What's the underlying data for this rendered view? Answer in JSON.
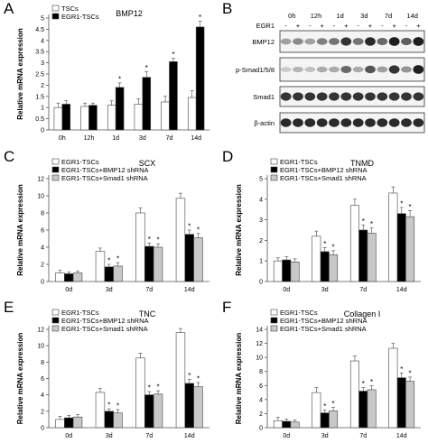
{
  "panels": {
    "A": "A",
    "B": "B",
    "C": "C",
    "D": "D",
    "E": "E",
    "F": "F"
  },
  "colors": {
    "open": "#ffffff",
    "dark": "#000000",
    "gray": "#c8c8c8",
    "axis": "#555555"
  },
  "chart_data": [
    {
      "panel": "A",
      "type": "bar",
      "title": "BMP12",
      "ylabel": "Relative mRNA expression",
      "xlabel": "",
      "categories": [
        "0h",
        "12h",
        "1d",
        "3d",
        "7d",
        "14d"
      ],
      "ylim": [
        0,
        5
      ],
      "yticks": [
        0,
        0.5,
        1,
        1.5,
        2,
        2.5,
        3,
        3.5,
        4,
        4.5,
        5
      ],
      "legend_position": "top-left",
      "series": [
        {
          "name": "TSCs",
          "fill": "open",
          "values": [
            1.0,
            1.05,
            1.1,
            1.15,
            1.25,
            1.45
          ],
          "errors": [
            0.2,
            0.15,
            0.2,
            0.25,
            0.25,
            0.3
          ]
        },
        {
          "name": "EGR1-TSCs",
          "fill": "dark",
          "values": [
            1.15,
            1.1,
            1.9,
            2.35,
            3.05,
            4.6
          ],
          "errors": [
            0.15,
            0.1,
            0.2,
            0.25,
            0.15,
            0.25
          ]
        }
      ],
      "significance": [
        {
          "category": "1d",
          "series": 1,
          "label": "*"
        },
        {
          "category": "3d",
          "series": 1,
          "label": "*"
        },
        {
          "category": "7d",
          "series": 1,
          "label": "*"
        },
        {
          "category": "14d",
          "series": 1,
          "label": "*"
        }
      ]
    },
    {
      "panel": "C",
      "type": "bar",
      "title": "SCX",
      "ylabel": "Relative mRNA expression",
      "xlabel": "",
      "categories": [
        "0d",
        "3d",
        "7d",
        "14d"
      ],
      "ylim": [
        0,
        12
      ],
      "yticks": [
        0,
        2,
        4,
        6,
        8,
        10,
        12
      ],
      "legend_position": "top-left",
      "series": [
        {
          "name": "EGR1-TSCs",
          "fill": "open",
          "values": [
            1.0,
            3.5,
            8.0,
            9.7
          ],
          "errors": [
            0.3,
            0.4,
            0.6,
            0.6
          ]
        },
        {
          "name": "EGR1-TSCs+BMP12 shRNA",
          "fill": "dark",
          "values": [
            0.9,
            1.7,
            4.1,
            5.5
          ],
          "errors": [
            0.2,
            0.3,
            0.4,
            0.5
          ]
        },
        {
          "name": "EGR1-TSCs+Smad1 shRNA",
          "fill": "gray",
          "values": [
            1.0,
            1.8,
            4.0,
            5.1
          ],
          "errors": [
            0.2,
            0.4,
            0.4,
            0.5
          ]
        }
      ],
      "significance": [
        {
          "category": "3d",
          "series": 1,
          "label": "*"
        },
        {
          "category": "3d",
          "series": 2,
          "label": "*"
        },
        {
          "category": "7d",
          "series": 1,
          "label": "*"
        },
        {
          "category": "7d",
          "series": 2,
          "label": "*"
        },
        {
          "category": "14d",
          "series": 1,
          "label": "*"
        },
        {
          "category": "14d",
          "series": 2,
          "label": "*"
        }
      ]
    },
    {
      "panel": "D",
      "type": "bar",
      "title": "TNMD",
      "ylabel": "Relative mRNA expression",
      "xlabel": "",
      "categories": [
        "0d",
        "3d",
        "7d",
        "14d"
      ],
      "ylim": [
        0,
        5
      ],
      "yticks": [
        0,
        1,
        2,
        3,
        4,
        5
      ],
      "legend_position": "top-left",
      "series": [
        {
          "name": "EGR1-TSCs",
          "fill": "open",
          "values": [
            1.0,
            2.2,
            3.7,
            4.3
          ],
          "errors": [
            0.15,
            0.25,
            0.3,
            0.3
          ]
        },
        {
          "name": "EGR1-TSCs+BMP12 shRNA",
          "fill": "dark",
          "values": [
            1.05,
            1.45,
            2.5,
            3.3
          ],
          "errors": [
            0.15,
            0.2,
            0.25,
            0.3
          ]
        },
        {
          "name": "EGR1-TSCs+Smad1 shRNA",
          "fill": "gray",
          "values": [
            0.95,
            1.3,
            2.35,
            3.15
          ],
          "errors": [
            0.15,
            0.2,
            0.25,
            0.3
          ]
        }
      ],
      "significance": [
        {
          "category": "3d",
          "series": 1,
          "label": "*"
        },
        {
          "category": "3d",
          "series": 2,
          "label": "*"
        },
        {
          "category": "7d",
          "series": 1,
          "label": "*"
        },
        {
          "category": "7d",
          "series": 2,
          "label": "*"
        },
        {
          "category": "14d",
          "series": 1,
          "label": "*"
        },
        {
          "category": "14d",
          "series": 2,
          "label": "*"
        }
      ]
    },
    {
      "panel": "E",
      "type": "bar",
      "title": "TNC",
      "ylabel": "Relative mRNA expression",
      "xlabel": "",
      "categories": [
        "0d",
        "3d",
        "7d",
        "14d"
      ],
      "ylim": [
        0,
        12
      ],
      "yticks": [
        0,
        2,
        4,
        6,
        8,
        10,
        12
      ],
      "legend_position": "top-left",
      "series": [
        {
          "name": "EGR1-TSCs",
          "fill": "open",
          "values": [
            1.0,
            4.3,
            8.5,
            11.6
          ],
          "errors": [
            0.4,
            0.5,
            0.6,
            0.5
          ]
        },
        {
          "name": "EGR1-TSCs+BMP12 shRNA",
          "fill": "dark",
          "values": [
            1.2,
            2.0,
            4.0,
            5.4
          ],
          "errors": [
            0.3,
            0.3,
            0.4,
            0.5
          ]
        },
        {
          "name": "EGR1-TSCs+Smad1 shRNA",
          "fill": "gray",
          "values": [
            1.3,
            1.8,
            4.1,
            5.0
          ],
          "errors": [
            0.3,
            0.4,
            0.4,
            0.5
          ]
        }
      ],
      "significance": [
        {
          "category": "3d",
          "series": 1,
          "label": "*"
        },
        {
          "category": "3d",
          "series": 2,
          "label": "*"
        },
        {
          "category": "7d",
          "series": 1,
          "label": "*"
        },
        {
          "category": "7d",
          "series": 2,
          "label": "*"
        },
        {
          "category": "14d",
          "series": 1,
          "label": "*"
        },
        {
          "category": "14d",
          "series": 2,
          "label": "*"
        }
      ]
    },
    {
      "panel": "F",
      "type": "bar",
      "title": "Collagen I",
      "ylabel": "Relative mRNA expression",
      "xlabel": "",
      "categories": [
        "0d",
        "3d",
        "7d",
        "14d"
      ],
      "ylim": [
        0,
        14
      ],
      "yticks": [
        0,
        2,
        4,
        6,
        8,
        10,
        12,
        14
      ],
      "legend_position": "top-left",
      "series": [
        {
          "name": "EGR1-TSCs",
          "fill": "open",
          "values": [
            1.0,
            5.0,
            9.5,
            11.3
          ],
          "errors": [
            0.5,
            0.7,
            0.7,
            0.7
          ]
        },
        {
          "name": "EGR1-TSCs+BMP12 shRNA",
          "fill": "dark",
          "values": [
            0.9,
            2.1,
            5.2,
            7.1
          ],
          "errors": [
            0.3,
            0.4,
            0.5,
            0.7
          ]
        },
        {
          "name": "EGR1-TSCs+Smad1 shRNA",
          "fill": "gray",
          "values": [
            0.8,
            2.4,
            5.4,
            6.6
          ],
          "errors": [
            0.3,
            0.5,
            0.6,
            0.6
          ]
        }
      ],
      "significance": [
        {
          "category": "3d",
          "series": 1,
          "label": "*"
        },
        {
          "category": "3d",
          "series": 2,
          "label": "*"
        },
        {
          "category": "7d",
          "series": 1,
          "label": "*"
        },
        {
          "category": "7d",
          "series": 2,
          "label": "*"
        },
        {
          "category": "14d",
          "series": 1,
          "label": "*"
        },
        {
          "category": "14d",
          "series": 2,
          "label": "*"
        }
      ]
    }
  ],
  "blot": {
    "time_labels": [
      "0h",
      "12h",
      "1d",
      "3d",
      "7d",
      "14d"
    ],
    "egr1_label": "EGR1",
    "egr1_signs": [
      "-",
      "+",
      "-",
      "+",
      "-",
      "+",
      "-",
      "+",
      "-",
      "+",
      "-",
      "+"
    ],
    "rows": [
      {
        "label": "BMP12",
        "intensity": [
          0.35,
          0.45,
          0.35,
          0.5,
          0.55,
          0.85,
          0.55,
          0.9,
          0.6,
          0.95,
          0.65,
          0.95
        ]
      },
      {
        "label": "p-Smad1/5/8",
        "intensity": [
          0.15,
          0.25,
          0.2,
          0.3,
          0.3,
          0.6,
          0.3,
          0.7,
          0.35,
          0.85,
          0.4,
          0.95
        ]
      },
      {
        "label": "Smad1",
        "intensity": [
          0.85,
          0.85,
          0.85,
          0.85,
          0.85,
          0.85,
          0.85,
          0.85,
          0.85,
          0.85,
          0.85,
          0.85
        ]
      },
      {
        "label": "β-actin",
        "intensity": [
          0.9,
          0.9,
          0.9,
          0.9,
          0.9,
          0.9,
          0.9,
          0.9,
          0.9,
          0.9,
          0.9,
          0.9
        ]
      }
    ]
  }
}
